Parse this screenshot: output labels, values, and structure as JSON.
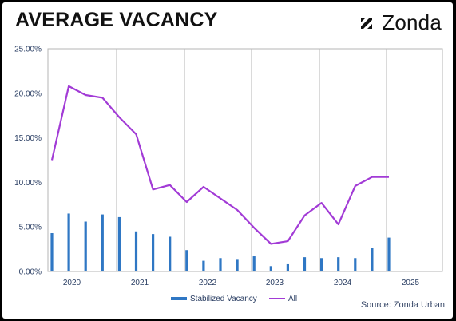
{
  "header": {
    "title": "AVERAGE VACANCY",
    "logo_text": "Zonda",
    "logo_icon": "zonda-z-icon"
  },
  "source": "Source: Zonda Urban",
  "colors": {
    "bar": "#2f77c4",
    "line": "#a23bd6",
    "grid": "#b5b5b5",
    "axis_text": "#2a3e63"
  },
  "chart_data": {
    "type": "bar-line",
    "title": "AVERAGE VACANCY",
    "xlabel": "",
    "ylabel": "",
    "ylim": [
      0,
      0.25
    ],
    "y_ticks": [
      "0.00%",
      "5.00%",
      "10.00%",
      "15.00%",
      "20.00%",
      "25.00%"
    ],
    "x_tick_labels": [
      "2020",
      "2021",
      "2022",
      "2023",
      "2024",
      "2025"
    ],
    "grid": "vertical lines between years",
    "legend_position": "bottom",
    "categories": [
      "2019 Q4",
      "2020 Q1",
      "2020 Q2",
      "2020 Q3",
      "2020 Q4",
      "2021 Q1",
      "2021 Q2",
      "2021 Q3",
      "2021 Q4",
      "2022 Q1",
      "2022 Q2",
      "2022 Q3",
      "2022 Q4",
      "2023 Q1",
      "2023 Q2",
      "2023 Q3",
      "2023 Q4",
      "2024 Q1",
      "2024 Q2",
      "2024 Q3",
      "2024 Q4"
    ],
    "series": [
      {
        "name": "Stabilized Vacancy",
        "type": "bar",
        "values": [
          0.043,
          0.065,
          0.056,
          0.064,
          0.061,
          0.045,
          0.042,
          0.039,
          0.024,
          0.012,
          0.015,
          0.014,
          0.017,
          0.006,
          0.009,
          0.016,
          0.015,
          0.016,
          0.015,
          0.026,
          0.038
        ]
      },
      {
        "name": "All",
        "type": "line",
        "values": [
          0.125,
          0.208,
          0.198,
          0.195,
          0.173,
          0.154,
          0.092,
          0.097,
          0.078,
          0.095,
          0.082,
          0.069,
          0.049,
          0.031,
          0.034,
          0.063,
          0.077,
          0.053,
          0.096,
          0.106,
          0.106
        ]
      }
    ]
  }
}
